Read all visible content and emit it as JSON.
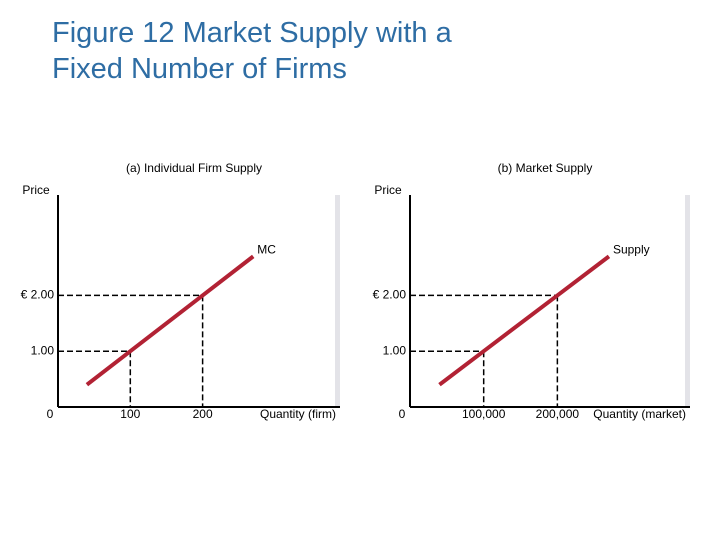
{
  "title": "Figure 12 Market Supply with a Fixed Number of Firms",
  "chart_data": [
    {
      "type": "line",
      "title": "(a) Individual Firm Supply",
      "ylabel": "Price",
      "xlabel": "Quantity (firm)",
      "xlim": [
        0,
        390
      ],
      "ylim": [
        0,
        3.8
      ],
      "xticks": [
        0,
        100,
        200
      ],
      "yticks": [
        {
          "value": 1,
          "label": "1.00"
        },
        {
          "value": 2,
          "label": "€ 2.00"
        }
      ],
      "series": [
        {
          "name": "MC",
          "color": "#b22234",
          "x": [
            40,
            100,
            200,
            270
          ],
          "values": [
            0.4,
            1,
            2,
            2.7
          ]
        }
      ]
    },
    {
      "type": "line",
      "title": "(b) Market Supply",
      "ylabel": "Price",
      "xlabel": "Quantity (market)",
      "xlim": [
        0,
        380000
      ],
      "ylim": [
        0,
        3.8
      ],
      "xticks": [
        0,
        {
          "value": 100000,
          "label": "100,000"
        },
        {
          "value": 200000,
          "label": "200,000"
        }
      ],
      "yticks": [
        {
          "value": 1,
          "label": "1.00"
        },
        {
          "value": 2,
          "label": "€ 2.00"
        }
      ],
      "series": [
        {
          "name": "Supply",
          "color": "#b22234",
          "x": [
            40000,
            100000,
            200000,
            270000
          ],
          "values": [
            0.4,
            1,
            2,
            2.7
          ]
        }
      ]
    }
  ]
}
